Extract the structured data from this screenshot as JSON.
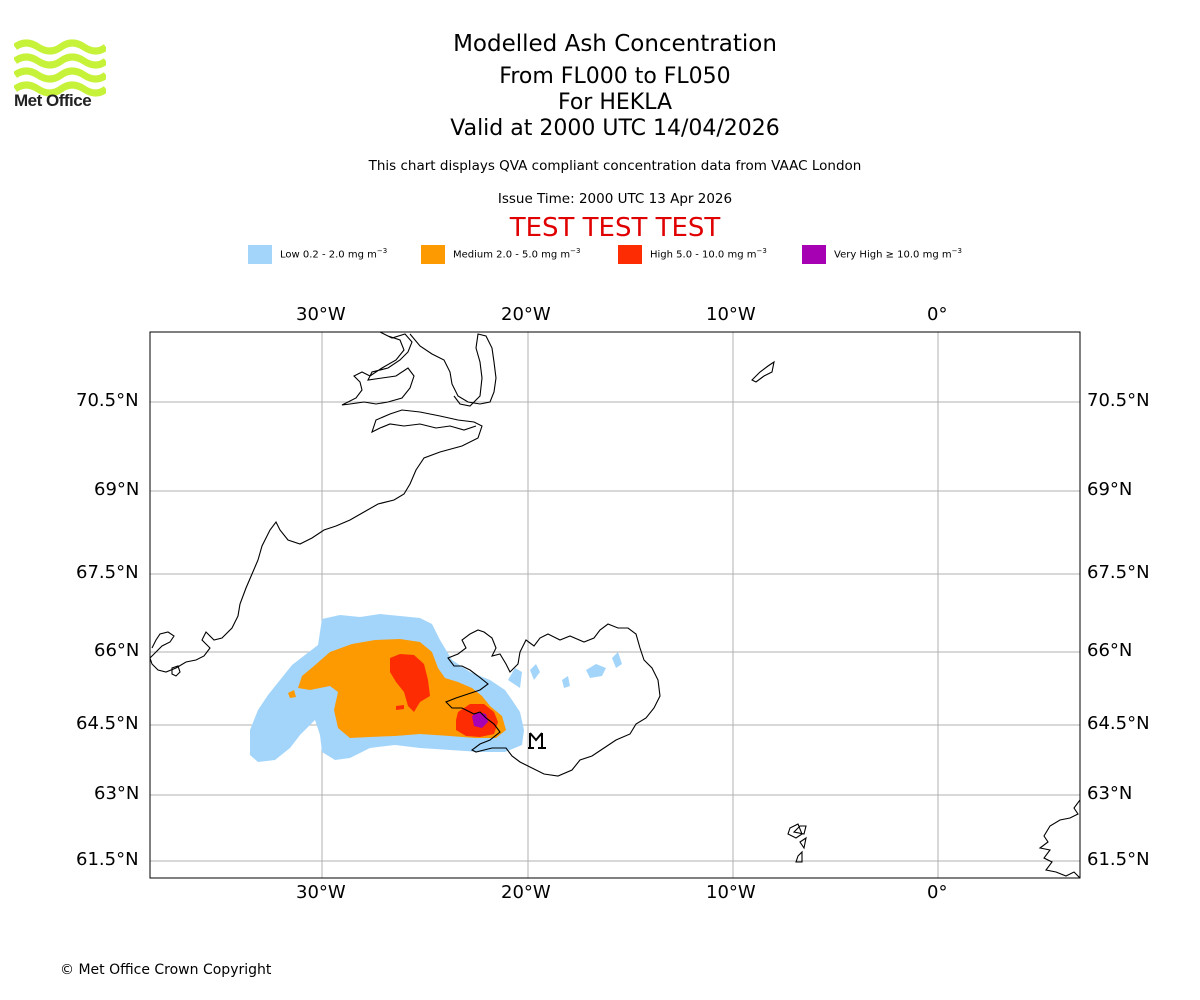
{
  "organisation": {
    "name": "Met Office",
    "logo_color": "#c6f23a",
    "copyright": "© Met Office Crown Copyright"
  },
  "titles": {
    "main": "Modelled Ash Concentration",
    "levels": "From FL000 to FL050",
    "volcano": "For HEKLA",
    "valid": "Valid at 2000 UTC 14/04/2026",
    "description": "This chart displays QVA compliant concentration data from VAAC London",
    "issue": "Issue Time: 2000 UTC 13 Apr 2026",
    "test_banner": "TEST TEST TEST",
    "test_color": "#e00000"
  },
  "legend": [
    {
      "label": "Low 0.2 - 2.0 mg m",
      "exp": "−3",
      "color": "#a3d5fb"
    },
    {
      "label": "Medium 2.0 - 5.0 mg m",
      "exp": "−3",
      "color": "#fd9901"
    },
    {
      "label": "High 5.0 - 10.0 mg m",
      "exp": "−3",
      "color": "#fe2c02"
    },
    {
      "label": "Very High  ≥  10.0 mg m",
      "exp": "−3",
      "color": "#a701b4"
    }
  ],
  "map": {
    "lon_labels": [
      "30°W",
      "20°W",
      "10°W",
      "0°"
    ],
    "lat_labels": [
      "70.5°N",
      "69°N",
      "67.5°N",
      "66°N",
      "64.5°N",
      "63°N",
      "61.5°N"
    ],
    "volcano_marker": "volcano-symbol"
  }
}
